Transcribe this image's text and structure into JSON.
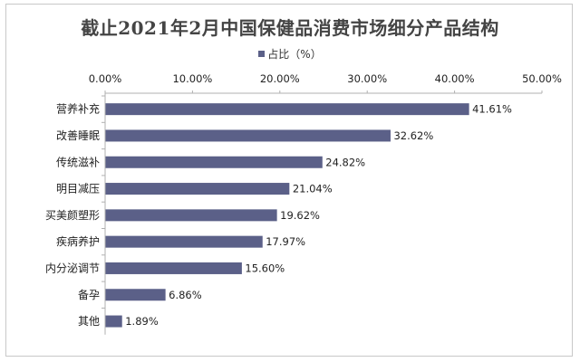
{
  "chart_data": {
    "type": "bar",
    "orientation": "horizontal",
    "title": "截止2021年2月中国保健品消费市场细分产品结构",
    "legend": {
      "position": "top",
      "label": "占比（%）"
    },
    "xlim": [
      0,
      50
    ],
    "x_ticks": [
      0,
      10,
      20,
      30,
      40,
      50
    ],
    "x_tick_labels": [
      "0.00%",
      "10.00%",
      "20.00%",
      "30.00%",
      "40.00%",
      "50.00%"
    ],
    "x_axis_position": "top",
    "grid": false,
    "categories": [
      "营养补充",
      "改善睡眠",
      "传统滋补",
      "明目减压",
      "买美颜塑形",
      "疾病养护",
      "内分泌调节",
      "备孕",
      "其他"
    ],
    "series": [
      {
        "name": "占比（%）",
        "values": [
          41.61,
          32.62,
          24.82,
          21.04,
          19.62,
          17.97,
          15.6,
          6.86,
          1.89
        ],
        "value_labels": [
          "41.61%",
          "32.62%",
          "24.82%",
          "21.04%",
          "19.62%",
          "17.97%",
          "15.60%",
          "6.86%",
          "1.89%"
        ],
        "color": "#5b6088"
      }
    ]
  }
}
